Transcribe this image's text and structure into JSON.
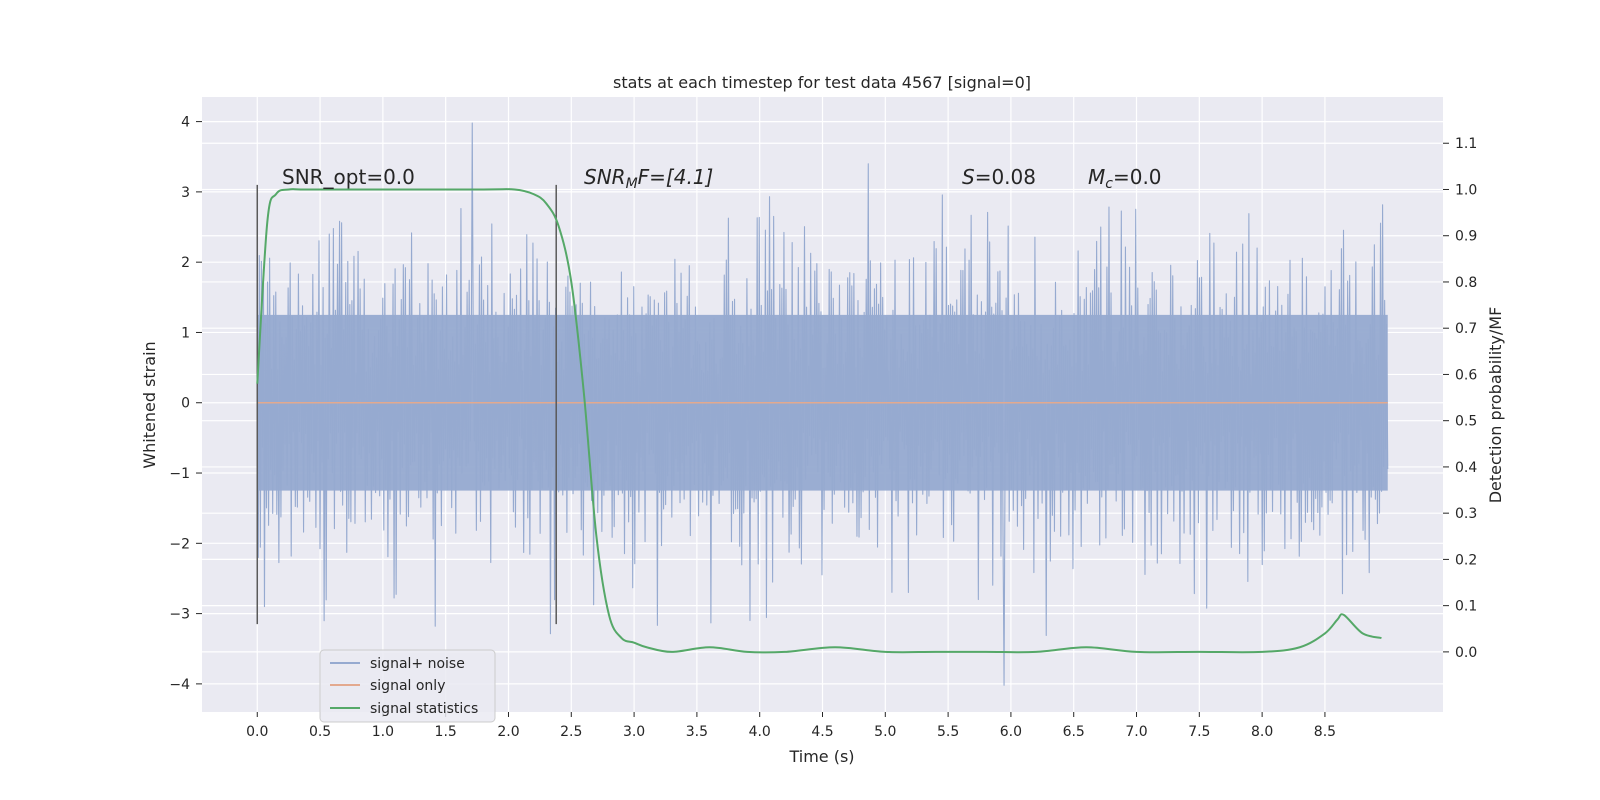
{
  "chart_data": {
    "type": "line",
    "title": "stats at each timestep for test data 4567 [signal=0]",
    "xlabel": "Time (s)",
    "ylabel": "Whitened strain",
    "y2label": "Detection probability/MF",
    "xlim": [
      -0.44,
      9.44
    ],
    "ylim": [
      -4.4,
      4.35
    ],
    "y2lim": [
      -0.13,
      1.2
    ],
    "xticks": [
      0.0,
      0.5,
      1.0,
      1.5,
      2.0,
      2.5,
      3.0,
      3.5,
      4.0,
      4.5,
      5.0,
      5.5,
      6.0,
      6.5,
      7.0,
      7.5,
      8.0,
      8.5
    ],
    "xtick_labels": [
      "0.0",
      "0.5",
      "1.0",
      "1.5",
      "2.0",
      "2.5",
      "3.0",
      "3.5",
      "4.0",
      "4.5",
      "5.0",
      "5.5",
      "6.0",
      "6.5",
      "7.0",
      "7.5",
      "8.0",
      "8.5"
    ],
    "yticks": [
      4,
      3,
      2,
      1,
      0,
      -1,
      -2,
      -3,
      -4
    ],
    "ytick_labels": [
      "4",
      "3",
      "2",
      "1",
      "0",
      "−1",
      "−2",
      "−3",
      "−4"
    ],
    "y2ticks": [
      1.1,
      1.0,
      0.9,
      0.8,
      0.7,
      0.6,
      0.5,
      0.4,
      0.3,
      0.2,
      0.1,
      0.0
    ],
    "y2tick_labels": [
      "1.1",
      "1.0",
      "0.9",
      "0.8",
      "0.7",
      "0.6",
      "0.5",
      "0.4",
      "0.3",
      "0.2",
      "0.1",
      "0.0"
    ],
    "noise": {
      "t_start": 0.0,
      "t_end": 9.0,
      "n_samples": 1100,
      "envelope_min": -2.3,
      "envelope_max": 2.3,
      "peak_max": 3.98,
      "peak_min": -4.02
    },
    "signal_only": {
      "t": [
        0.0,
        9.0
      ],
      "y": [
        0.0,
        0.0
      ]
    },
    "signal_statistics": {
      "t": [
        0.0,
        0.08,
        0.15,
        0.25,
        0.4,
        1.0,
        1.8,
        2.05,
        2.2,
        2.3,
        2.4,
        2.5,
        2.6,
        2.7,
        2.8,
        2.9,
        3.0,
        3.1,
        3.3,
        3.6,
        3.9,
        4.2,
        4.6,
        5.0,
        5.4,
        5.8,
        6.2,
        6.6,
        7.0,
        7.5,
        8.0,
        8.3,
        8.5,
        8.6,
        8.65,
        8.8,
        8.95
      ],
      "p": [
        0.58,
        0.93,
        0.99,
        1.0,
        1.0,
        1.0,
        1.0,
        1.0,
        0.99,
        0.97,
        0.92,
        0.8,
        0.56,
        0.25,
        0.08,
        0.03,
        0.02,
        0.01,
        0.0,
        0.01,
        0.0,
        0.0,
        0.01,
        0.0,
        0.0,
        0.0,
        0.0,
        0.01,
        0.0,
        0.0,
        0.0,
        0.01,
        0.04,
        0.07,
        0.08,
        0.04,
        0.03
      ]
    },
    "vlines": [
      {
        "t": 0.0,
        "y_from": -3.15,
        "y_to": 3.1
      },
      {
        "t": 2.38,
        "y_from": -3.15,
        "y_to": 3.1
      }
    ],
    "annotations": {
      "snr_opt": "SNR_opt=0.0",
      "snr_mf_main": "SNR",
      "snr_mf_sub": "M",
      "snr_mf_tail": "F=[4.1]",
      "s_main": "S",
      "s_tail": "=0.08",
      "mc_main": "M",
      "mc_sub": "c",
      "mc_tail": "=0.0"
    },
    "legend": {
      "position": "lower-left",
      "entries": [
        {
          "label": "signal+ noise",
          "color": "#96aad0"
        },
        {
          "label": "signal only",
          "color": "#e3a98e"
        },
        {
          "label": "signal statistics",
          "color": "#55a868"
        }
      ]
    },
    "colors": {
      "plot_bg": "#eaeaf2",
      "grid": "#ffffff",
      "noise": "#96aad0",
      "signal": "#e3a98e",
      "stat": "#55a868",
      "vline": "#5a5a5a"
    }
  }
}
